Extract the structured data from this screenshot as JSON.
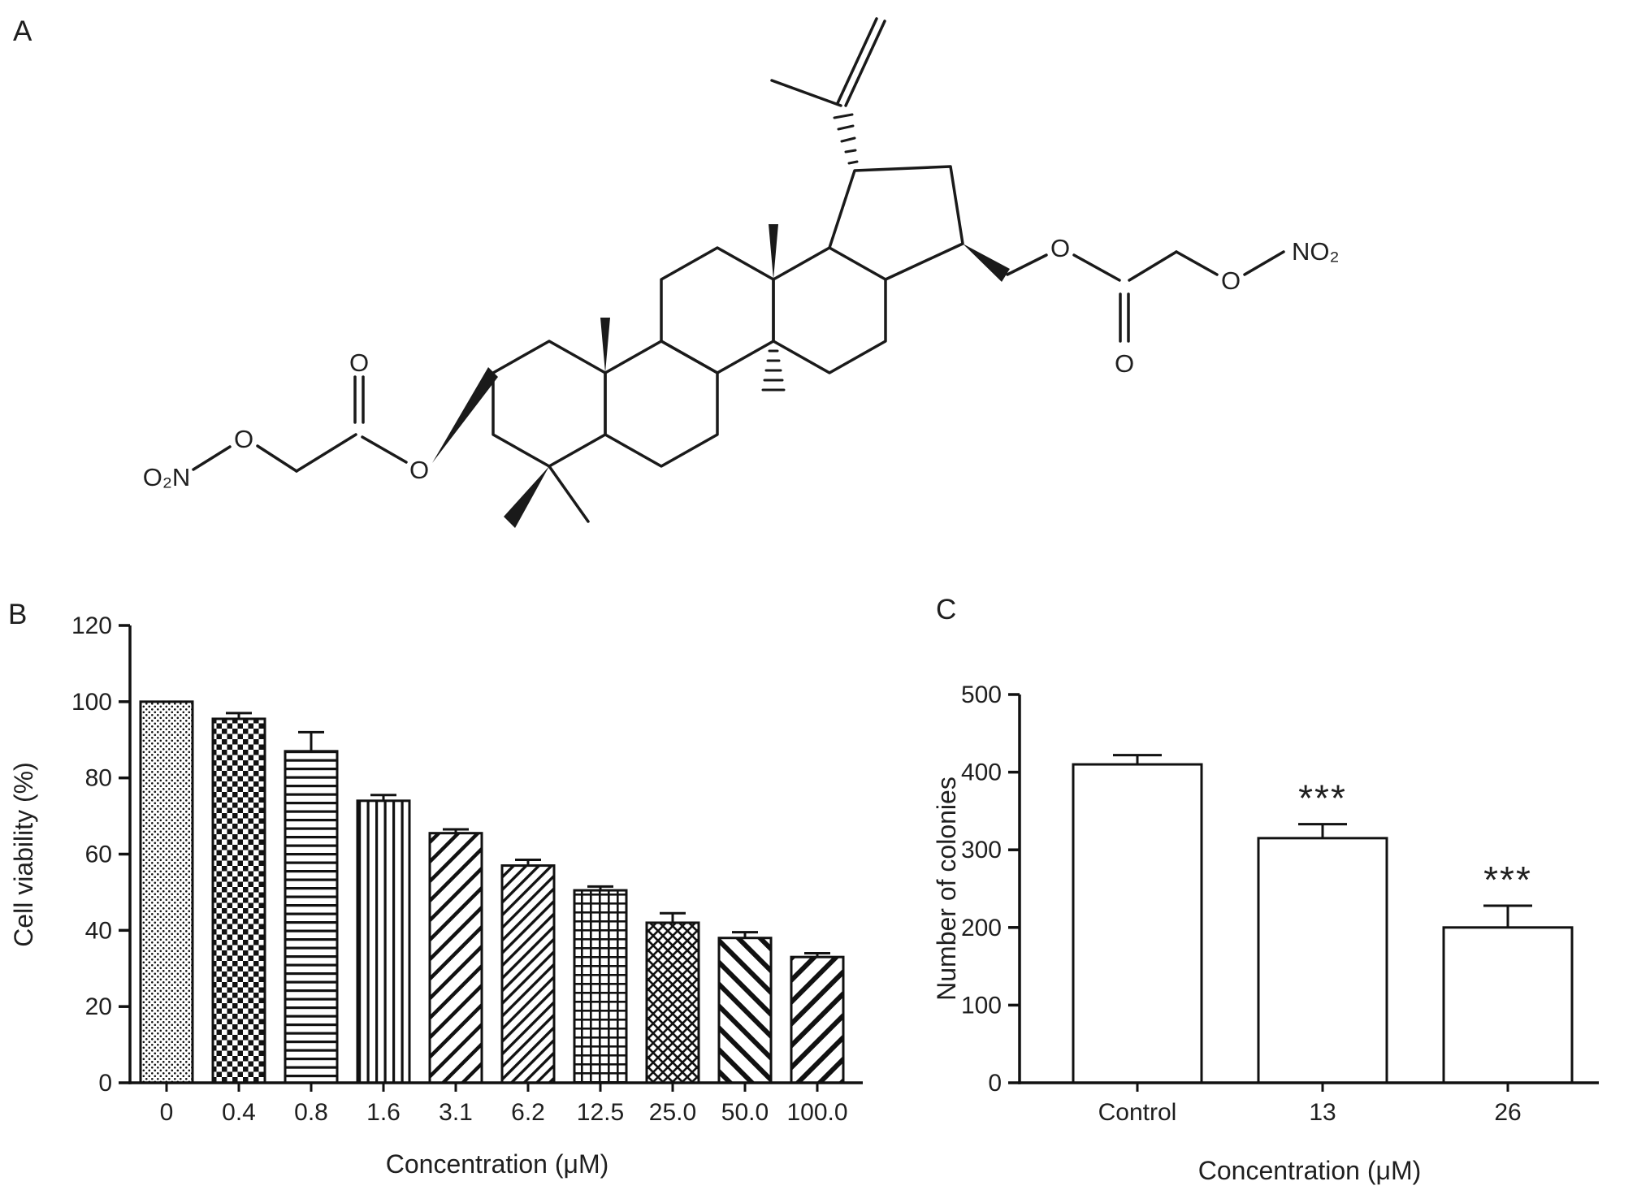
{
  "figure": {
    "panels": {
      "a": "A",
      "b": "B",
      "c": "C"
    }
  },
  "structure": {
    "labels": {
      "left_nitro": "O₂N",
      "left_chain_o": "O",
      "left_carbonyl_o": "O",
      "left_ester_o": "O",
      "right_ester_o": "O",
      "right_carbonyl_o": "O",
      "right_chain_o": "O",
      "right_nitro": "NO₂"
    }
  },
  "chart_data": [
    {
      "type": "bar",
      "panel": "B",
      "title": "",
      "categories": [
        "0",
        "0.4",
        "0.8",
        "1.6",
        "3.1",
        "6.2",
        "12.5",
        "25.0",
        "50.0",
        "100.0"
      ],
      "values": [
        100,
        95.5,
        87,
        74,
        65.5,
        57,
        50.5,
        42,
        38,
        33
      ],
      "errors": [
        0,
        1.5,
        5,
        1.5,
        1,
        1.5,
        1,
        2.5,
        1.5,
        1
      ],
      "patterns": [
        "stipple",
        "checker",
        "hlines",
        "vlines",
        "diag-wide",
        "diag-dense",
        "grid",
        "cross-diag",
        "bdiag-wide",
        "fdiag-wide"
      ],
      "xlabel": "Concentration (μM)",
      "ylabel": "Cell viability (%)",
      "ylim": [
        0,
        120
      ],
      "ytick_step": 20,
      "grid": false,
      "legend": false
    },
    {
      "type": "bar",
      "panel": "C",
      "title": "",
      "categories": [
        "Control",
        "13",
        "26"
      ],
      "values": [
        410,
        315,
        200
      ],
      "errors": [
        12,
        18,
        28
      ],
      "annotations": [
        "",
        "***",
        "***"
      ],
      "bar_fill": "white",
      "xlabel": "Concentration (μM)",
      "ylabel": "Number of colonies",
      "ylim": [
        0,
        500
      ],
      "ytick_step": 100,
      "grid": false,
      "legend": false
    }
  ]
}
